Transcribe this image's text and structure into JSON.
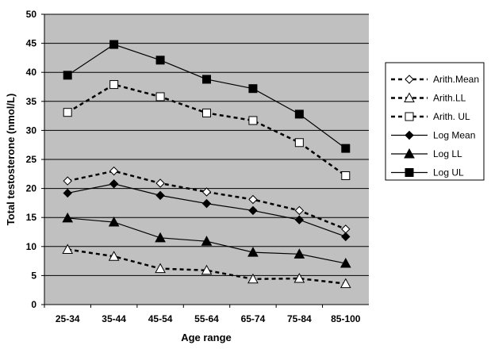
{
  "chart_data": {
    "type": "line",
    "title": "",
    "xlabel": "Age range",
    "ylabel": "Total testosterone (nmol/L)",
    "categories": [
      "25-34",
      "35-44",
      "45-54",
      "55-64",
      "65-74",
      "75-84",
      "85-100"
    ],
    "ylim": [
      0,
      50
    ],
    "yticks": [
      0,
      5,
      10,
      15,
      20,
      25,
      30,
      35,
      40,
      45,
      50
    ],
    "grid": true,
    "legend_position": "right",
    "plot_background": "#c0c0c0",
    "series": [
      {
        "name": "Arith.Mean",
        "marker": "diamond-open",
        "line": "dashed",
        "values": [
          21.3,
          23.0,
          20.9,
          19.4,
          18.1,
          16.2,
          13.0
        ]
      },
      {
        "name": "Arith.LL",
        "marker": "triangle-open",
        "line": "dashed",
        "values": [
          9.5,
          8.3,
          6.2,
          5.9,
          4.4,
          4.5,
          3.6
        ]
      },
      {
        "name": "Arith. UL",
        "marker": "square-open",
        "line": "dashed",
        "values": [
          33.1,
          37.9,
          35.8,
          33.0,
          31.7,
          27.9,
          22.2
        ]
      },
      {
        "name": "Log Mean",
        "marker": "diamond-filled",
        "line": "solid",
        "values": [
          19.2,
          20.8,
          18.8,
          17.4,
          16.2,
          14.6,
          11.7
        ]
      },
      {
        "name": "Log LL",
        "marker": "triangle-filled",
        "line": "solid",
        "values": [
          14.9,
          14.2,
          11.5,
          10.9,
          9.0,
          8.7,
          7.1
        ]
      },
      {
        "name": "Log UL",
        "marker": "square-filled",
        "line": "solid",
        "values": [
          39.5,
          44.8,
          42.1,
          38.8,
          37.2,
          32.8,
          26.9
        ]
      }
    ]
  }
}
